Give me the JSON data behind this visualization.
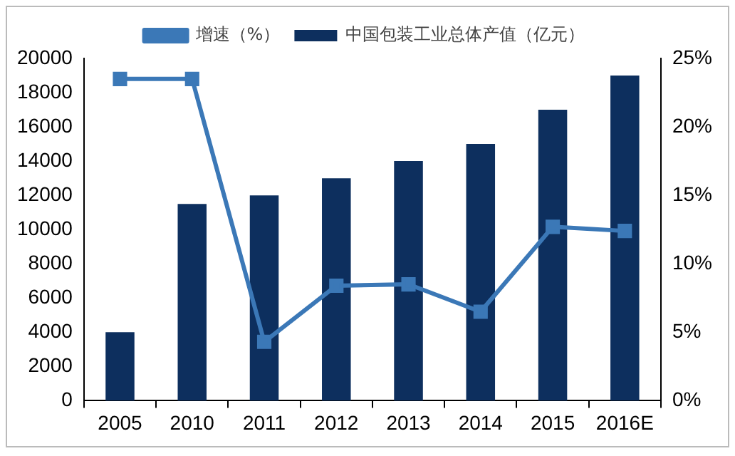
{
  "chart_data": {
    "type": "bar",
    "categories": [
      "2005",
      "2010",
      "2011",
      "2012",
      "2013",
      "2014",
      "2015",
      "2016E"
    ],
    "series": [
      {
        "name": "中国包装工业总体产值（亿元）",
        "color": "#0d2f5e",
        "values": [
          4000,
          11500,
          12000,
          13000,
          14000,
          15000,
          17000,
          19000
        ]
      },
      {
        "name": "增速（%）",
        "type": "line",
        "axis": "y2",
        "color": "#3b78b7",
        "marker": "square",
        "values": [
          23.5,
          23.5,
          4.3,
          8.4,
          8.5,
          6.5,
          12.7,
          12.4
        ]
      }
    ],
    "ylim": [
      0,
      20000
    ],
    "yticks": [
      0,
      2000,
      4000,
      6000,
      8000,
      10000,
      12000,
      14000,
      16000,
      18000,
      20000
    ],
    "y2lim": [
      0,
      25
    ],
    "y2ticks": [
      {
        "value": 0,
        "label": "0%"
      },
      {
        "value": 5,
        "label": "5%"
      },
      {
        "value": 10,
        "label": "10%"
      },
      {
        "value": 15,
        "label": "15%"
      },
      {
        "value": 20,
        "label": "20%"
      },
      {
        "value": 25,
        "label": "25%"
      }
    ],
    "grid": false,
    "legend": "top"
  }
}
